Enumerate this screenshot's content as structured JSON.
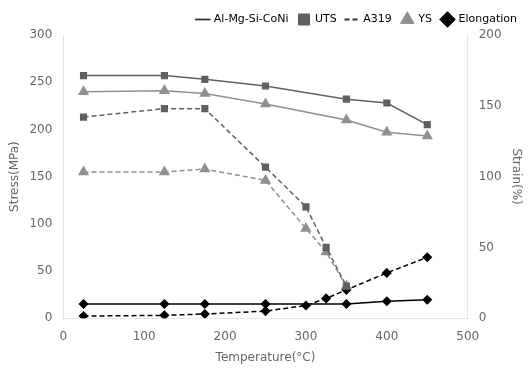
{
  "chart_data": {
    "type": "line",
    "x_label": "Temperature(°C)",
    "y_label": "Stress(MPa)",
    "y2_label": "Strain(%)",
    "xlim": [
      0,
      500
    ],
    "xticks": [
      0,
      100,
      200,
      300,
      400,
      500
    ],
    "ylim": [
      0,
      300
    ],
    "yticks": [
      0,
      50,
      100,
      150,
      200,
      250,
      300
    ],
    "y2lim": [
      0,
      200
    ],
    "y2ticks": [
      0,
      50,
      100,
      150,
      200
    ],
    "grid": false,
    "legend": "upper right",
    "legend_entries": [
      {
        "name": "Al-Mg-Si-CoNi",
        "line_style": "solid",
        "color": "#333333"
      },
      {
        "name": "UTS",
        "marker": "square",
        "color": "#606060"
      },
      {
        "name": "A319",
        "line_style": "dashed",
        "color": "#333333"
      },
      {
        "name": "YS",
        "marker": "triangle",
        "color": "#909090"
      },
      {
        "name": "Elongation",
        "marker": "diamond",
        "color": "#000000"
      }
    ],
    "series": [
      {
        "color": "#606060",
        "marker": "square",
        "line_style": "solid",
        "x": [
          25,
          125,
          175,
          250,
          350,
          400,
          450
        ],
        "values": [
          257,
          257,
          253,
          246,
          232,
          228,
          205
        ]
      },
      {
        "color": "#909090",
        "marker": "triangle",
        "line_style": "solid",
        "x": [
          25,
          125,
          175,
          250,
          350,
          400,
          450
        ],
        "values": [
          240,
          241,
          238,
          227,
          210,
          197,
          193
        ]
      },
      {
        "color": "#000000",
        "marker": "diamond",
        "line_style": "solid",
        "axis": "y2",
        "x": [
          25,
          125,
          175,
          250,
          350,
          400,
          450
        ],
        "values": [
          10,
          10,
          10,
          10,
          10,
          12,
          13
        ]
      },
      {
        "color": "#606060",
        "marker": "square",
        "line_style": "dashed",
        "x": [
          25,
          125,
          175,
          250,
          300,
          325,
          350
        ],
        "values": [
          213,
          222,
          222,
          160,
          118,
          75,
          34
        ]
      },
      {
        "color": "#909090",
        "marker": "triangle",
        "line_style": "dashed",
        "x": [
          25,
          125,
          175,
          250,
          300,
          325,
          350
        ],
        "values": [
          155,
          155,
          158,
          146,
          95,
          70,
          34
        ]
      },
      {
        "color": "#000000",
        "marker": "diamond",
        "line_style": "dashed",
        "axis": "y2",
        "x": [
          25,
          125,
          175,
          250,
          300,
          325,
          350,
          400,
          450
        ],
        "values": [
          1.5,
          2,
          3,
          5,
          9,
          14,
          20,
          32,
          43
        ]
      }
    ]
  }
}
